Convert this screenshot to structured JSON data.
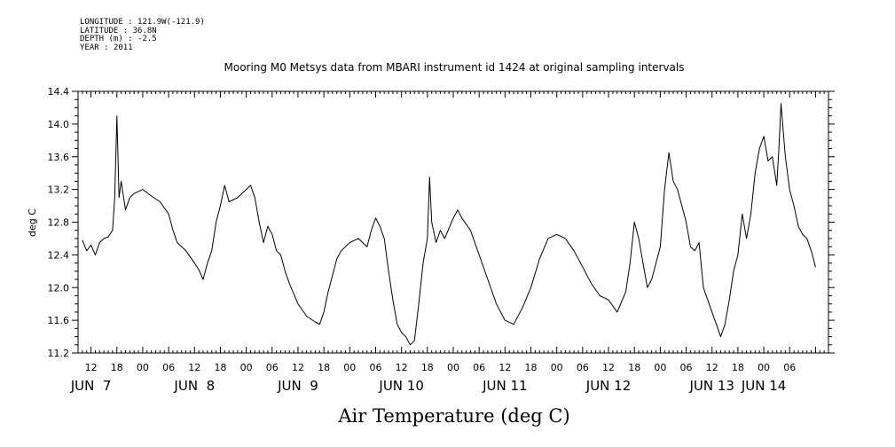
{
  "metadata": {
    "longitude": "LONGITUDE : 121.9W(-121.9)",
    "latitude": "LATITUDE : 36.8N",
    "depth": "DEPTH (m) : -2.5",
    "year": "YEAR : 2011"
  },
  "chart_data": {
    "type": "line",
    "title": "Mooring M0 Metsys data from MBARI instrument id 1424 at original sampling intervals",
    "xlabel": "Air Temperature (deg C)",
    "ylabel": "deg C",
    "ylim": [
      11.2,
      14.4
    ],
    "yticks": [
      "11.2",
      "11.6",
      "12.0",
      "12.4",
      "12.8",
      "13.2",
      "13.6",
      "14.0",
      "14.4"
    ],
    "xlim": [
      "2011-06-07T09:00",
      "2011-06-14T15:00"
    ],
    "hour_ticks": [
      {
        "t": "2011-06-07T12:00",
        "label": "12"
      },
      {
        "t": "2011-06-07T18:00",
        "label": "18"
      },
      {
        "t": "2011-06-08T00:00",
        "label": "00"
      },
      {
        "t": "2011-06-08T06:00",
        "label": "06"
      },
      {
        "t": "2011-06-08T12:00",
        "label": "12"
      },
      {
        "t": "2011-06-08T18:00",
        "label": "18"
      },
      {
        "t": "2011-06-09T00:00",
        "label": "00"
      },
      {
        "t": "2011-06-09T06:00",
        "label": "06"
      },
      {
        "t": "2011-06-09T12:00",
        "label": "12"
      },
      {
        "t": "2011-06-09T18:00",
        "label": "18"
      },
      {
        "t": "2011-06-10T00:00",
        "label": "00"
      },
      {
        "t": "2011-06-10T06:00",
        "label": "06"
      },
      {
        "t": "2011-06-10T12:00",
        "label": "12"
      },
      {
        "t": "2011-06-10T18:00",
        "label": "18"
      },
      {
        "t": "2011-06-11T00:00",
        "label": "00"
      },
      {
        "t": "2011-06-11T06:00",
        "label": "06"
      },
      {
        "t": "2011-06-11T12:00",
        "label": "12"
      },
      {
        "t": "2011-06-11T18:00",
        "label": "18"
      },
      {
        "t": "2011-06-12T00:00",
        "label": "00"
      },
      {
        "t": "2011-06-12T06:00",
        "label": "06"
      },
      {
        "t": "2011-06-12T12:00",
        "label": "12"
      },
      {
        "t": "2011-06-12T18:00",
        "label": "18"
      },
      {
        "t": "2011-06-13T00:00",
        "label": "00"
      },
      {
        "t": "2011-06-13T06:00",
        "label": "06"
      },
      {
        "t": "2011-06-13T12:00",
        "label": "12"
      },
      {
        "t": "2011-06-13T18:00",
        "label": "18"
      },
      {
        "t": "2011-06-14T00:00",
        "label": "00"
      },
      {
        "t": "2011-06-14T06:00",
        "label": "06"
      }
    ],
    "day_labels": [
      {
        "t": "2011-06-07T12:00",
        "label": "JUN  7"
      },
      {
        "t": "2011-06-08T12:00",
        "label": "JUN  8"
      },
      {
        "t": "2011-06-09T12:00",
        "label": "JUN  9"
      },
      {
        "t": "2011-06-10T12:00",
        "label": "JUN 10"
      },
      {
        "t": "2011-06-11T12:00",
        "label": "JUN 11"
      },
      {
        "t": "2011-06-12T12:00",
        "label": "JUN 12"
      },
      {
        "t": "2011-06-13T12:00",
        "label": "JUN 13"
      },
      {
        "t": "2011-06-14T00:00",
        "label": "JUN 14"
      }
    ],
    "series": [
      {
        "color": "#000000",
        "points": [
          [
            "2011-06-07T10:00",
            12.58
          ],
          [
            "2011-06-07T11:00",
            12.45
          ],
          [
            "2011-06-07T12:00",
            12.52
          ],
          [
            "2011-06-07T13:00",
            12.4
          ],
          [
            "2011-06-07T14:00",
            12.55
          ],
          [
            "2011-06-07T15:00",
            12.6
          ],
          [
            "2011-06-07T16:00",
            12.62
          ],
          [
            "2011-06-07T17:00",
            12.7
          ],
          [
            "2011-06-07T17:30",
            13.1
          ],
          [
            "2011-06-07T18:00",
            14.1
          ],
          [
            "2011-06-07T18:30",
            13.1
          ],
          [
            "2011-06-07T19:00",
            13.3
          ],
          [
            "2011-06-07T20:00",
            12.95
          ],
          [
            "2011-06-07T21:00",
            13.1
          ],
          [
            "2011-06-07T22:00",
            13.15
          ],
          [
            "2011-06-08T00:00",
            13.2
          ],
          [
            "2011-06-08T02:00",
            13.12
          ],
          [
            "2011-06-08T04:00",
            13.05
          ],
          [
            "2011-06-08T06:00",
            12.9
          ],
          [
            "2011-06-08T07:00",
            12.7
          ],
          [
            "2011-06-08T08:00",
            12.55
          ],
          [
            "2011-06-08T10:00",
            12.45
          ],
          [
            "2011-06-08T12:00",
            12.3
          ],
          [
            "2011-06-08T13:00",
            12.22
          ],
          [
            "2011-06-08T14:00",
            12.1
          ],
          [
            "2011-06-08T15:00",
            12.3
          ],
          [
            "2011-06-08T16:00",
            12.45
          ],
          [
            "2011-06-08T17:00",
            12.8
          ],
          [
            "2011-06-08T18:00",
            13.0
          ],
          [
            "2011-06-08T19:00",
            13.25
          ],
          [
            "2011-06-08T20:00",
            13.05
          ],
          [
            "2011-06-08T22:00",
            13.1
          ],
          [
            "2011-06-09T00:00",
            13.2
          ],
          [
            "2011-06-09T01:00",
            13.25
          ],
          [
            "2011-06-09T02:00",
            13.1
          ],
          [
            "2011-06-09T03:00",
            12.8
          ],
          [
            "2011-06-09T04:00",
            12.55
          ],
          [
            "2011-06-09T05:00",
            12.75
          ],
          [
            "2011-06-09T06:00",
            12.65
          ],
          [
            "2011-06-09T07:00",
            12.45
          ],
          [
            "2011-06-09T08:00",
            12.4
          ],
          [
            "2011-06-09T09:00",
            12.2
          ],
          [
            "2011-06-09T10:00",
            12.05
          ],
          [
            "2011-06-09T12:00",
            11.8
          ],
          [
            "2011-06-09T14:00",
            11.65
          ],
          [
            "2011-06-09T16:00",
            11.58
          ],
          [
            "2011-06-09T17:00",
            11.55
          ],
          [
            "2011-06-09T18:00",
            11.7
          ],
          [
            "2011-06-09T19:00",
            11.95
          ],
          [
            "2011-06-09T20:00",
            12.15
          ],
          [
            "2011-06-09T21:00",
            12.35
          ],
          [
            "2011-06-09T22:00",
            12.45
          ],
          [
            "2011-06-10T00:00",
            12.55
          ],
          [
            "2011-06-10T02:00",
            12.6
          ],
          [
            "2011-06-10T04:00",
            12.5
          ],
          [
            "2011-06-10T05:00",
            12.7
          ],
          [
            "2011-06-10T06:00",
            12.85
          ],
          [
            "2011-06-10T07:00",
            12.75
          ],
          [
            "2011-06-10T08:00",
            12.6
          ],
          [
            "2011-06-10T09:00",
            12.2
          ],
          [
            "2011-06-10T10:00",
            11.85
          ],
          [
            "2011-06-10T11:00",
            11.55
          ],
          [
            "2011-06-10T12:00",
            11.45
          ],
          [
            "2011-06-10T13:00",
            11.4
          ],
          [
            "2011-06-10T14:00",
            11.3
          ],
          [
            "2011-06-10T15:00",
            11.35
          ],
          [
            "2011-06-10T16:00",
            11.8
          ],
          [
            "2011-06-10T17:00",
            12.3
          ],
          [
            "2011-06-10T18:00",
            12.6
          ],
          [
            "2011-06-10T18:30",
            13.35
          ],
          [
            "2011-06-10T19:00",
            12.8
          ],
          [
            "2011-06-10T20:00",
            12.55
          ],
          [
            "2011-06-10T21:00",
            12.7
          ],
          [
            "2011-06-10T22:00",
            12.6
          ],
          [
            "2011-06-11T00:00",
            12.85
          ],
          [
            "2011-06-11T01:00",
            12.95
          ],
          [
            "2011-06-11T02:00",
            12.85
          ],
          [
            "2011-06-11T04:00",
            12.7
          ],
          [
            "2011-06-11T06:00",
            12.4
          ],
          [
            "2011-06-11T08:00",
            12.1
          ],
          [
            "2011-06-11T10:00",
            11.8
          ],
          [
            "2011-06-11T12:00",
            11.6
          ],
          [
            "2011-06-11T14:00",
            11.55
          ],
          [
            "2011-06-11T16:00",
            11.75
          ],
          [
            "2011-06-11T18:00",
            12.0
          ],
          [
            "2011-06-11T20:00",
            12.35
          ],
          [
            "2011-06-11T22:00",
            12.6
          ],
          [
            "2011-06-12T00:00",
            12.65
          ],
          [
            "2011-06-12T02:00",
            12.6
          ],
          [
            "2011-06-12T04:00",
            12.45
          ],
          [
            "2011-06-12T06:00",
            12.25
          ],
          [
            "2011-06-12T08:00",
            12.05
          ],
          [
            "2011-06-12T10:00",
            11.9
          ],
          [
            "2011-06-12T12:00",
            11.85
          ],
          [
            "2011-06-12T14:00",
            11.7
          ],
          [
            "2011-06-12T16:00",
            11.95
          ],
          [
            "2011-06-12T17:00",
            12.3
          ],
          [
            "2011-06-12T18:00",
            12.8
          ],
          [
            "2011-06-12T19:00",
            12.6
          ],
          [
            "2011-06-12T20:00",
            12.3
          ],
          [
            "2011-06-12T21:00",
            12.0
          ],
          [
            "2011-06-12T22:00",
            12.1
          ],
          [
            "2011-06-13T00:00",
            12.5
          ],
          [
            "2011-06-13T01:00",
            13.2
          ],
          [
            "2011-06-13T02:00",
            13.65
          ],
          [
            "2011-06-13T03:00",
            13.3
          ],
          [
            "2011-06-13T04:00",
            13.2
          ],
          [
            "2011-06-13T06:00",
            12.8
          ],
          [
            "2011-06-13T07:00",
            12.5
          ],
          [
            "2011-06-13T08:00",
            12.45
          ],
          [
            "2011-06-13T09:00",
            12.55
          ],
          [
            "2011-06-13T10:00",
            12.0
          ],
          [
            "2011-06-13T12:00",
            11.7
          ],
          [
            "2011-06-13T13:00",
            11.55
          ],
          [
            "2011-06-13T14:00",
            11.4
          ],
          [
            "2011-06-13T15:00",
            11.55
          ],
          [
            "2011-06-13T16:00",
            11.85
          ],
          [
            "2011-06-13T17:00",
            12.2
          ],
          [
            "2011-06-13T18:00",
            12.4
          ],
          [
            "2011-06-13T19:00",
            12.9
          ],
          [
            "2011-06-13T20:00",
            12.6
          ],
          [
            "2011-06-13T21:00",
            12.9
          ],
          [
            "2011-06-13T22:00",
            13.4
          ],
          [
            "2011-06-13T23:00",
            13.7
          ],
          [
            "2011-06-14T00:00",
            13.85
          ],
          [
            "2011-06-14T01:00",
            13.55
          ],
          [
            "2011-06-14T02:00",
            13.6
          ],
          [
            "2011-06-14T03:00",
            13.25
          ],
          [
            "2011-06-14T03:30",
            13.7
          ],
          [
            "2011-06-14T04:00",
            14.25
          ],
          [
            "2011-06-14T05:00",
            13.6
          ],
          [
            "2011-06-14T06:00",
            13.2
          ],
          [
            "2011-06-14T07:00",
            13.0
          ],
          [
            "2011-06-14T08:00",
            12.75
          ],
          [
            "2011-06-14T09:00",
            12.65
          ],
          [
            "2011-06-14T10:00",
            12.6
          ],
          [
            "2011-06-14T11:00",
            12.45
          ],
          [
            "2011-06-14T12:00",
            12.25
          ]
        ]
      }
    ]
  }
}
